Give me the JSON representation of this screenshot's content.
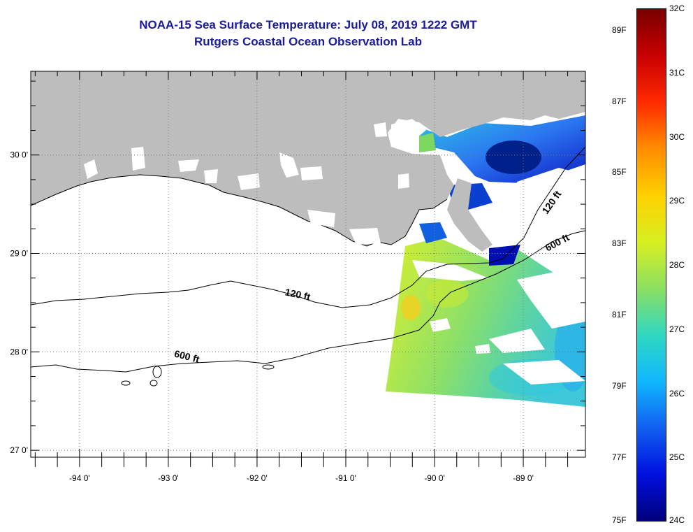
{
  "title": "NOAA-15 Sea Surface Temperature:  July 08, 2019 1222 GMT",
  "subtitle": "Rutgers Coastal Ocean Observation Lab",
  "map": {
    "lon_range": [
      -94.55,
      -88.3
    ],
    "lat_range": [
      26.93,
      30.85
    ],
    "lon_ticks": [
      {
        "value": -94,
        "label": "-94 0'"
      },
      {
        "value": -93,
        "label": "-93 0'"
      },
      {
        "value": -92,
        "label": "-92 0'"
      },
      {
        "value": -91,
        "label": "-91 0'"
      },
      {
        "value": -90,
        "label": "-90 0'"
      },
      {
        "value": -89,
        "label": "-89 0'"
      }
    ],
    "lat_ticks": [
      {
        "value": 30,
        "label": "30 0'"
      },
      {
        "value": 29,
        "label": "29 0'"
      },
      {
        "value": 28,
        "label": "28 0'"
      },
      {
        "value": 27,
        "label": "27 0'"
      }
    ],
    "contour_labels": [
      {
        "text": "120 ft",
        "lon": -91.55,
        "lat": 28.55,
        "rotate": 12
      },
      {
        "text": "600 ft",
        "lon": -92.8,
        "lat": 27.92,
        "rotate": 14
      },
      {
        "text": "120 ft",
        "lon": -88.65,
        "lat": 29.5,
        "rotate": -55
      },
      {
        "text": "600 ft",
        "lon": -88.6,
        "lat": 29.08,
        "rotate": -28
      }
    ],
    "colors": {
      "land": "#bdbdbd",
      "water": "#ffffff",
      "contour": "#000000",
      "grid": "#7a7a7a"
    }
  },
  "colorbar": {
    "colors_top_to_bottom": [
      "#7a0000",
      "#c80000",
      "#ff2a00",
      "#ff8c00",
      "#ffd000",
      "#d8f020",
      "#8ce060",
      "#30d8c0",
      "#10b8ff",
      "#1060f0",
      "#0010e0",
      "#00007a"
    ],
    "fahrenheit_labels": [
      {
        "text": "89F",
        "value": 89
      },
      {
        "text": "87F",
        "value": 87
      },
      {
        "text": "85F",
        "value": 85
      },
      {
        "text": "83F",
        "value": 83
      },
      {
        "text": "81F",
        "value": 81
      },
      {
        "text": "79F",
        "value": 79
      },
      {
        "text": "77F",
        "value": 77
      },
      {
        "text": "75F",
        "value": 75
      }
    ],
    "celsius_labels": [
      {
        "text": "32C",
        "value": 32
      },
      {
        "text": "31C",
        "value": 31
      },
      {
        "text": "30C",
        "value": 30
      },
      {
        "text": "29C",
        "value": 29
      },
      {
        "text": "28C",
        "value": 28
      },
      {
        "text": "27C",
        "value": 27
      },
      {
        "text": "26C",
        "value": 26
      },
      {
        "text": "25C",
        "value": 25
      },
      {
        "text": "24C",
        "value": 24
      }
    ]
  }
}
